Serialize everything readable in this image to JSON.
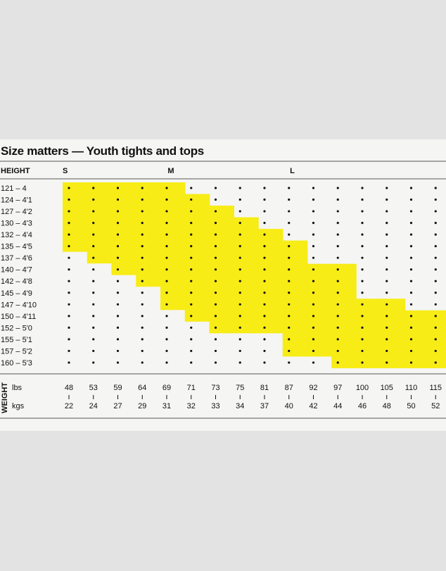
{
  "chart_data": {
    "type": "heatmap",
    "title": "Size matters — Youth tights and tops",
    "row_header": "HEIGHT",
    "weight_label": "WEIGHT",
    "heights": [
      "121 – 4",
      "124 – 4'1",
      "127 – 4'2",
      "130 – 4'3",
      "132 – 4'4",
      "135 – 4'5",
      "137 – 4'6",
      "140 – 4'7",
      "142 – 4'8",
      "145 – 4'9",
      "147 – 4'10",
      "150 – 4'11",
      "152 – 5'0",
      "155 – 5'1",
      "157 – 5'2",
      "160 – 5'3"
    ],
    "weight_lbs_label": "lbs",
    "weight_kgs_label": "kgs",
    "weights_lbs": [
      "48",
      "53",
      "59",
      "64",
      "69",
      "71",
      "73",
      "75",
      "81",
      "87",
      "92",
      "97",
      "100",
      "105",
      "110",
      "115"
    ],
    "weights_kgs": [
      "22",
      "24",
      "27",
      "29",
      "31",
      "32",
      "33",
      "34",
      "37",
      "40",
      "42",
      "44",
      "46",
      "48",
      "50",
      "52"
    ],
    "size_labels": [
      {
        "label": "S",
        "col": 0
      },
      {
        "label": "M",
        "col": 4.3
      },
      {
        "label": "L",
        "col": 9.3
      }
    ],
    "highlight_color": "#f7ec15",
    "size_regions": [
      {
        "size": "S",
        "columns": [
          {
            "col": 0,
            "rows": [
              0,
              5
            ]
          },
          {
            "col": 1,
            "rows": [
              0,
              6
            ]
          },
          {
            "col": 2,
            "rows": [
              0,
              7
            ]
          },
          {
            "col": 3,
            "rows": [
              0,
              8
            ]
          },
          {
            "col": 4,
            "rows": [
              0,
              8
            ]
          }
        ]
      },
      {
        "size": "M",
        "columns": [
          {
            "col": 4,
            "rows": [
              1,
              10
            ]
          },
          {
            "col": 5,
            "rows": [
              1,
              11
            ]
          },
          {
            "col": 6,
            "rows": [
              2,
              12
            ]
          },
          {
            "col": 7,
            "rows": [
              3,
              12
            ]
          },
          {
            "col": 8,
            "rows": [
              4,
              12
            ]
          },
          {
            "col": 9,
            "rows": [
              5,
              12
            ]
          }
        ]
      },
      {
        "size": "L",
        "columns": [
          {
            "col": 9,
            "rows": [
              6,
              14
            ]
          },
          {
            "col": 10,
            "rows": [
              7,
              14
            ]
          },
          {
            "col": 11,
            "rows": [
              7,
              15
            ]
          },
          {
            "col": 12,
            "rows": [
              10,
              15
            ]
          },
          {
            "col": 13,
            "rows": [
              10,
              15
            ]
          },
          {
            "col": 14,
            "rows": [
              11,
              15
            ]
          },
          {
            "col": 15,
            "rows": [
              11,
              15
            ]
          }
        ]
      }
    ]
  }
}
